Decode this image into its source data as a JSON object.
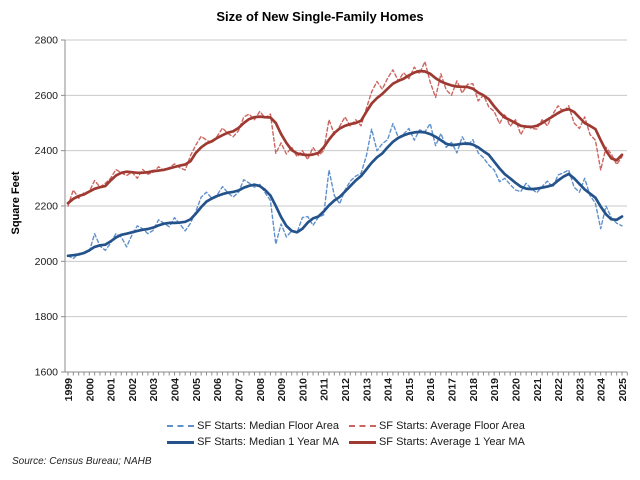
{
  "title": "Size of New Single-Family Homes",
  "source": "Source: Census Bureau; NAHB",
  "chart_data": {
    "type": "line",
    "title": "Size of New Single-Family Homes",
    "xlabel": "",
    "ylabel": "Square Feet",
    "ylim": [
      1600,
      2800
    ],
    "ytick_step": 200,
    "grid": true,
    "legend_position": "bottom",
    "x_start": 1999,
    "x_end": 2025,
    "x_step": 0.25,
    "x_tick_labels": [
      "1999",
      "2000",
      "2001",
      "2002",
      "2003",
      "2004",
      "2005",
      "2006",
      "2007",
      "2008",
      "2009",
      "2010",
      "2011",
      "2012",
      "2013",
      "2014",
      "2015",
      "2016",
      "2017",
      "2018",
      "2019",
      "2020",
      "2021",
      "2022",
      "2023",
      "2024",
      "2025"
    ],
    "axis_color": "#8C8C8C",
    "grid_color": "#C9C9C9",
    "series": [
      {
        "name": "SF Starts: Median Floor Area",
        "color": "#6090CC",
        "style": "dashed",
        "width": 1.4,
        "values": [
          2020,
          2010,
          2028,
          2032,
          2035,
          2100,
          2055,
          2040,
          2065,
          2100,
          2088,
          2052,
          2095,
          2128,
          2118,
          2100,
          2112,
          2150,
          2138,
          2125,
          2158,
          2135,
          2110,
          2138,
          2180,
          2232,
          2250,
          2228,
          2240,
          2270,
          2248,
          2232,
          2250,
          2295,
          2283,
          2268,
          2278,
          2248,
          2220,
          2062,
          2135,
          2088,
          2110,
          2105,
          2158,
          2162,
          2130,
          2160,
          2168,
          2330,
          2238,
          2208,
          2258,
          2290,
          2308,
          2318,
          2380,
          2478,
          2400,
          2425,
          2440,
          2498,
          2448,
          2460,
          2480,
          2438,
          2475,
          2468,
          2498,
          2418,
          2462,
          2412,
          2430,
          2392,
          2450,
          2418,
          2440,
          2392,
          2374,
          2348,
          2330,
          2288,
          2300,
          2278,
          2258,
          2252,
          2282,
          2262,
          2248,
          2270,
          2290,
          2268,
          2312,
          2320,
          2330,
          2268,
          2250,
          2300,
          2238,
          2210,
          2118,
          2200,
          2158,
          2138,
          2128
        ]
      },
      {
        "name": "SF Starts: Average Floor Area",
        "color": "#CC6560",
        "style": "dashed",
        "width": 1.4,
        "values": [
          2200,
          2258,
          2228,
          2248,
          2252,
          2292,
          2268,
          2282,
          2300,
          2332,
          2320,
          2310,
          2322,
          2300,
          2332,
          2315,
          2322,
          2342,
          2328,
          2338,
          2352,
          2338,
          2330,
          2382,
          2420,
          2452,
          2438,
          2428,
          2452,
          2482,
          2462,
          2450,
          2472,
          2522,
          2532,
          2512,
          2542,
          2518,
          2532,
          2390,
          2428,
          2388,
          2412,
          2378,
          2400,
          2368,
          2412,
          2382,
          2400,
          2512,
          2458,
          2488,
          2522,
          2488,
          2512,
          2490,
          2552,
          2612,
          2650,
          2622,
          2662,
          2692,
          2652,
          2682,
          2660,
          2702,
          2678,
          2722,
          2648,
          2592,
          2678,
          2620,
          2600,
          2652,
          2608,
          2640,
          2642,
          2580,
          2600,
          2558,
          2542,
          2498,
          2532,
          2488,
          2512,
          2458,
          2492,
          2480,
          2478,
          2512,
          2490,
          2532,
          2562,
          2540,
          2562,
          2500,
          2480,
          2522,
          2458,
          2438,
          2330,
          2412,
          2388,
          2350,
          2378
        ]
      },
      {
        "name": "SF Starts: Median 1 Year MA",
        "color": "#24538B",
        "style": "solid",
        "width": 2.7,
        "values": [
          2020,
          2022,
          2025,
          2030,
          2040,
          2052,
          2058,
          2060,
          2072,
          2086,
          2096,
          2100,
          2105,
          2110,
          2114,
          2117,
          2122,
          2130,
          2136,
          2139,
          2139,
          2140,
          2143,
          2152,
          2172,
          2196,
          2216,
          2227,
          2236,
          2243,
          2248,
          2251,
          2256,
          2266,
          2273,
          2277,
          2272,
          2258,
          2238,
          2200,
          2160,
          2128,
          2110,
          2105,
          2118,
          2140,
          2155,
          2162,
          2180,
          2202,
          2220,
          2233,
          2252,
          2272,
          2292,
          2308,
          2332,
          2356,
          2376,
          2390,
          2412,
          2432,
          2446,
          2455,
          2462,
          2466,
          2468,
          2466,
          2460,
          2450,
          2438,
          2425,
          2420,
          2422,
          2425,
          2426,
          2422,
          2412,
          2398,
          2385,
          2360,
          2336,
          2315,
          2300,
          2284,
          2270,
          2263,
          2261,
          2263,
          2266,
          2270,
          2276,
          2292,
          2306,
          2316,
          2300,
          2280,
          2260,
          2245,
          2230,
          2198,
          2170,
          2152,
          2150,
          2162
        ]
      },
      {
        "name": "SF Starts: Average 1 Year MA",
        "color": "#9E3A32",
        "style": "solid",
        "width": 2.7,
        "values": [
          2210,
          2226,
          2236,
          2242,
          2252,
          2262,
          2268,
          2272,
          2292,
          2310,
          2320,
          2324,
          2322,
          2320,
          2320,
          2322,
          2326,
          2328,
          2331,
          2336,
          2341,
          2346,
          2350,
          2362,
          2392,
          2412,
          2426,
          2434,
          2446,
          2456,
          2465,
          2470,
          2482,
          2500,
          2514,
          2521,
          2523,
          2521,
          2520,
          2500,
          2460,
          2428,
          2402,
          2390,
          2386,
          2384,
          2386,
          2392,
          2412,
          2440,
          2464,
          2480,
          2490,
          2496,
          2500,
          2508,
          2540,
          2570,
          2590,
          2605,
          2624,
          2642,
          2652,
          2660,
          2672,
          2682,
          2688,
          2686,
          2678,
          2662,
          2650,
          2642,
          2636,
          2632,
          2631,
          2630,
          2624,
          2610,
          2600,
          2586,
          2560,
          2538,
          2520,
          2510,
          2500,
          2490,
          2487,
          2486,
          2490,
          2500,
          2512,
          2524,
          2536,
          2546,
          2550,
          2540,
          2520,
          2500,
          2490,
          2478,
          2438,
          2400,
          2372,
          2365,
          2385
        ]
      }
    ]
  }
}
